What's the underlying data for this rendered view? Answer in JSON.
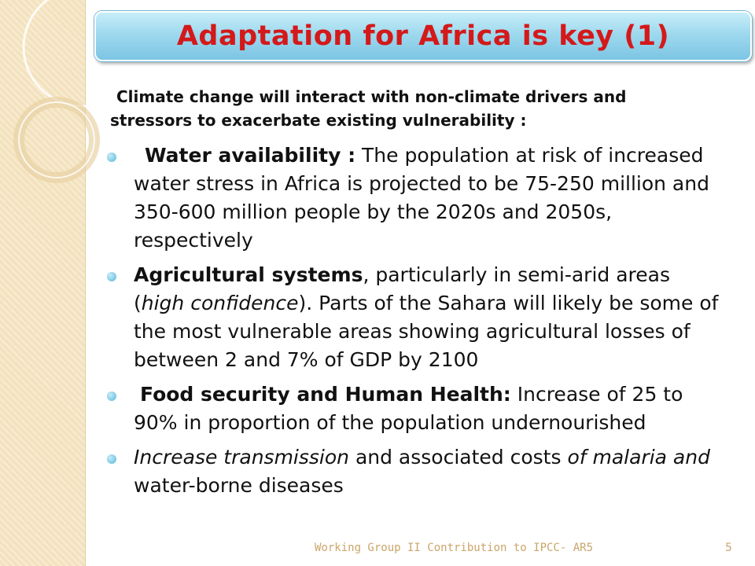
{
  "slide": {
    "title": "Adaptation for Africa is key (1)",
    "intro": "Climate change will interact with non-climate drivers and stressors to exacerbate existing vulnerability :"
  },
  "bullets": [
    {
      "lead": "Water availability :",
      "text": " The population at risk of increased water stress in Africa is projected to be 75-250 million and 350-600 million people by the 2020s and 2050s, respectively"
    },
    {
      "lead": "Agricultural systems",
      "text_before_italic": ", particularly in semi-arid areas (",
      "italic": "high confidence",
      "text_after_italic": "). Parts of the Sahara will likely be some of the most vulnerable areas showing agricultural losses of between 2 and 7% of GDP by 2100"
    },
    {
      "lead": "Food security and Human Health:",
      "text": " Increase of 25 to 90% in proportion of the population undernourished"
    },
    {
      "italic_lead": "Increase transmission",
      "text_mid": " and associated costs ",
      "italic_mid": "of malaria and",
      "text_end": " water-borne diseases"
    }
  ],
  "footer": {
    "text": "Working Group II Contribution to IPCC- AR5",
    "page_number": "5"
  },
  "colors": {
    "title_text": "#d4191a",
    "title_bar": "#9ed9ee",
    "sidebar": "#f3e2bd",
    "bullet": "#58b6d8",
    "footer_text": "#c9a56a"
  }
}
